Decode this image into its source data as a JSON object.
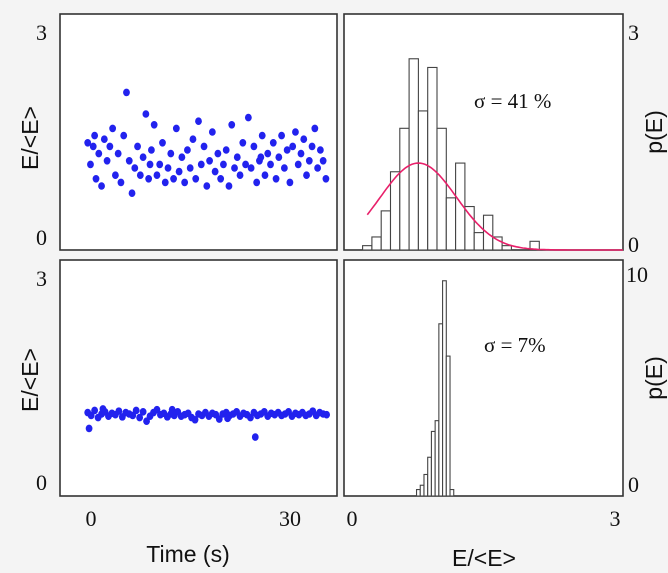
{
  "chart_data": [
    {
      "type": "scatter",
      "panel": "top-left",
      "ylabel": "E/<E>",
      "ylim": [
        0,
        3
      ],
      "yticks": [
        "3",
        "0"
      ],
      "xlim": [
        -4,
        36
      ],
      "color": "#2222ee",
      "points": [
        [
          0.0,
          1.35
        ],
        [
          0.4,
          1.05
        ],
        [
          0.8,
          1.3
        ],
        [
          1.2,
          0.85
        ],
        [
          1.6,
          1.2
        ],
        [
          2.0,
          0.75
        ],
        [
          2.4,
          1.4
        ],
        [
          2.8,
          1.1
        ],
        [
          3.2,
          1.3
        ],
        [
          3.6,
          1.55
        ],
        [
          4.0,
          0.9
        ],
        [
          4.4,
          1.2
        ],
        [
          4.8,
          0.8
        ],
        [
          5.2,
          1.45
        ],
        [
          5.6,
          2.05
        ],
        [
          6.0,
          1.1
        ],
        [
          6.4,
          0.65
        ],
        [
          6.8,
          1.0
        ],
        [
          7.2,
          1.3
        ],
        [
          7.6,
          0.9
        ],
        [
          8.0,
          1.15
        ],
        [
          8.4,
          1.75
        ],
        [
          8.8,
          0.85
        ],
        [
          9.2,
          1.25
        ],
        [
          9.6,
          1.6
        ],
        [
          10.0,
          0.9
        ],
        [
          10.4,
          1.05
        ],
        [
          10.8,
          1.35
        ],
        [
          11.2,
          0.8
        ],
        [
          11.6,
          1.0
        ],
        [
          12.0,
          1.2
        ],
        [
          12.4,
          0.85
        ],
        [
          12.8,
          1.55
        ],
        [
          13.2,
          0.95
        ],
        [
          13.6,
          1.15
        ],
        [
          14.0,
          0.8
        ],
        [
          14.4,
          1.25
        ],
        [
          14.8,
          1.0
        ],
        [
          15.2,
          1.4
        ],
        [
          15.6,
          0.85
        ],
        [
          16.0,
          1.65
        ],
        [
          16.4,
          1.05
        ],
        [
          16.8,
          1.3
        ],
        [
          17.2,
          0.75
        ],
        [
          17.6,
          1.1
        ],
        [
          18.0,
          1.5
        ],
        [
          18.4,
          0.95
        ],
        [
          18.8,
          1.2
        ],
        [
          19.2,
          0.85
        ],
        [
          19.6,
          1.05
        ],
        [
          20.0,
          1.25
        ],
        [
          20.4,
          0.75
        ],
        [
          20.8,
          1.6
        ],
        [
          21.2,
          1.0
        ],
        [
          21.6,
          1.15
        ],
        [
          22.0,
          0.9
        ],
        [
          22.4,
          1.35
        ],
        [
          22.8,
          1.05
        ],
        [
          23.2,
          1.7
        ],
        [
          23.6,
          1.0
        ],
        [
          24.0,
          1.3
        ],
        [
          24.4,
          0.8
        ],
        [
          24.8,
          1.1
        ],
        [
          25.2,
          1.45
        ],
        [
          25.6,
          0.9
        ],
        [
          26.0,
          1.2
        ],
        [
          26.4,
          1.05
        ],
        [
          26.8,
          1.35
        ],
        [
          27.2,
          0.85
        ],
        [
          27.6,
          1.15
        ],
        [
          28.0,
          1.45
        ],
        [
          28.4,
          1.0
        ],
        [
          28.8,
          1.25
        ],
        [
          29.2,
          0.8
        ],
        [
          29.6,
          1.3
        ],
        [
          30.0,
          1.5
        ],
        [
          30.4,
          1.05
        ],
        [
          30.8,
          1.2
        ],
        [
          31.2,
          1.4
        ],
        [
          31.6,
          0.9
        ],
        [
          32.0,
          1.1
        ],
        [
          32.4,
          1.3
        ],
        [
          32.8,
          1.55
        ],
        [
          33.2,
          1.0
        ],
        [
          33.6,
          1.25
        ],
        [
          34.0,
          1.1
        ],
        [
          34.4,
          0.85
        ],
        [
          1.0,
          1.45
        ],
        [
          9.0,
          1.05
        ],
        [
          25.0,
          1.15
        ]
      ]
    },
    {
      "type": "bar",
      "panel": "top-right",
      "annotation": "σ = 41 %",
      "y2label": "p(E)",
      "y2ticks": [
        "3",
        "0"
      ],
      "xlim": [
        0,
        3
      ],
      "bins": [
        0.2,
        0.3,
        0.4,
        0.5,
        0.6,
        0.7,
        0.8,
        0.9,
        1.0,
        1.1,
        1.2,
        1.3,
        1.4,
        1.5,
        1.6,
        1.7,
        1.8,
        1.9,
        2.0
      ],
      "values": [
        0.05,
        0.15,
        0.45,
        0.9,
        1.4,
        2.2,
        1.6,
        2.1,
        1.4,
        0.6,
        1.0,
        0.5,
        0.2,
        0.4,
        0.15,
        0.05,
        0.0,
        0.0,
        0.1
      ],
      "vmax": 2.6,
      "fit": "gaussian",
      "fit_color": "#e8206a",
      "fit_peak": 1.0,
      "fit_center": 0.8,
      "fit_sigma": 0.41
    },
    {
      "type": "scatter",
      "panel": "bottom-left",
      "ylabel": "E/<E>",
      "xlabel": "Time (s)",
      "ylim": [
        0,
        3
      ],
      "yticks": [
        "3",
        "0"
      ],
      "xlim": [
        -4,
        36
      ],
      "xticks": [
        "0",
        "30"
      ],
      "xtick_values": [
        0,
        30
      ],
      "color": "#2222ee",
      "points": [
        [
          0.0,
          1.02
        ],
        [
          0.5,
          0.98
        ],
        [
          1.0,
          1.05
        ],
        [
          1.5,
          0.95
        ],
        [
          2.0,
          1.0
        ],
        [
          2.5,
          1.03
        ],
        [
          3.0,
          0.97
        ],
        [
          3.5,
          1.01
        ],
        [
          4.0,
          0.99
        ],
        [
          4.5,
          1.04
        ],
        [
          5.0,
          0.96
        ],
        [
          5.5,
          1.02
        ],
        [
          6.0,
          1.0
        ],
        [
          6.5,
          0.98
        ],
        [
          7.0,
          1.05
        ],
        [
          7.5,
          0.95
        ],
        [
          8.0,
          1.03
        ],
        [
          8.5,
          0.9
        ],
        [
          9.0,
          0.97
        ],
        [
          9.5,
          1.02
        ],
        [
          10.0,
          1.06
        ],
        [
          10.5,
          0.99
        ],
        [
          11.0,
          1.01
        ],
        [
          11.5,
          0.96
        ],
        [
          12.0,
          1.0
        ],
        [
          12.5,
          0.98
        ],
        [
          13.0,
          1.03
        ],
        [
          13.5,
          0.97
        ],
        [
          14.0,
          0.99
        ],
        [
          14.5,
          1.01
        ],
        [
          15.0,
          0.95
        ],
        [
          15.5,
          0.92
        ],
        [
          16.0,
          1.0
        ],
        [
          16.5,
          0.98
        ],
        [
          17.0,
          1.02
        ],
        [
          17.5,
          0.97
        ],
        [
          18.0,
          1.01
        ],
        [
          18.5,
          0.99
        ],
        [
          19.0,
          0.93
        ],
        [
          19.5,
          1.0
        ],
        [
          20.0,
          1.02
        ],
        [
          20.5,
          0.98
        ],
        [
          21.0,
          1.0
        ],
        [
          21.5,
          1.03
        ],
        [
          22.0,
          0.97
        ],
        [
          22.5,
          1.01
        ],
        [
          23.0,
          0.99
        ],
        [
          23.5,
          0.95
        ],
        [
          24.0,
          1.02
        ],
        [
          24.5,
          0.98
        ],
        [
          25.0,
          1.0
        ],
        [
          25.5,
          1.03
        ],
        [
          26.0,
          0.97
        ],
        [
          26.5,
          1.01
        ],
        [
          27.0,
          0.99
        ],
        [
          27.5,
          1.02
        ],
        [
          28.0,
          0.98
        ],
        [
          28.5,
          1.0
        ],
        [
          29.0,
          1.03
        ],
        [
          29.5,
          0.97
        ],
        [
          30.0,
          1.01
        ],
        [
          30.5,
          0.99
        ],
        [
          31.0,
          1.02
        ],
        [
          31.5,
          0.98
        ],
        [
          32.0,
          1.0
        ],
        [
          32.5,
          1.04
        ],
        [
          33.0,
          0.98
        ],
        [
          33.5,
          1.02
        ],
        [
          34.0,
          1.0
        ],
        [
          34.5,
          0.99
        ],
        [
          0.2,
          0.8
        ],
        [
          24.2,
          0.68
        ],
        [
          2.2,
          1.07
        ],
        [
          12.2,
          1.06
        ],
        [
          20.2,
          0.94
        ]
      ]
    },
    {
      "type": "bar",
      "panel": "bottom-right",
      "annotation": "σ = 7%",
      "xlabel": "E/<E>",
      "y2label": "p(E)",
      "y2ticks": [
        "10",
        "0"
      ],
      "xlim": [
        0,
        3
      ],
      "xticks": [
        "0",
        "3"
      ],
      "xtick_values": [
        0,
        3
      ],
      "bins": [
        0.78,
        0.82,
        0.86,
        0.9,
        0.94,
        0.98,
        1.02,
        1.06,
        1.1,
        1.14
      ],
      "values": [
        0.3,
        0.5,
        1.0,
        1.8,
        3.0,
        3.5,
        8.0,
        10.0,
        6.5,
        0.3
      ],
      "vmax": 10.5
    }
  ]
}
